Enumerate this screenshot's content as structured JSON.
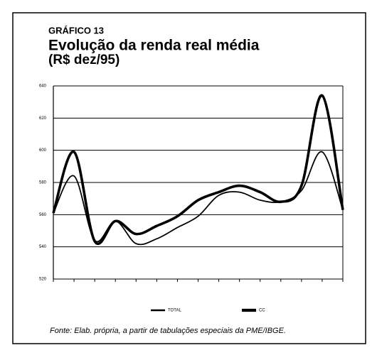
{
  "chart_data": {
    "type": "line",
    "label": "GRÁFICO 13",
    "title": "Evolução da renda real média",
    "subtitle": "(R$ dez/95)",
    "source": "Fonte: Elab. própria, a partir de tabulações especiais da PME/IBGE.",
    "categories": [
      null,
      null,
      null,
      null,
      null,
      null,
      null,
      null,
      null,
      null,
      null,
      null,
      null,
      null,
      null
    ],
    "series": [
      {
        "name": "TOTAL",
        "color": "#000000",
        "values": [
          561,
          584,
          544,
          556,
          542,
          545,
          552,
          559,
          572,
          574,
          569,
          568,
          575,
          599,
          563
        ]
      },
      {
        "name": "CC",
        "color": "#000000",
        "values": [
          561,
          599,
          543.5,
          556,
          548,
          553,
          559,
          569,
          574,
          578,
          574,
          568,
          578,
          634,
          563
        ]
      }
    ],
    "ylim": [
      520,
      640
    ],
    "yticks": [
      520,
      540,
      560,
      580,
      600,
      620,
      640
    ],
    "grid": true
  }
}
